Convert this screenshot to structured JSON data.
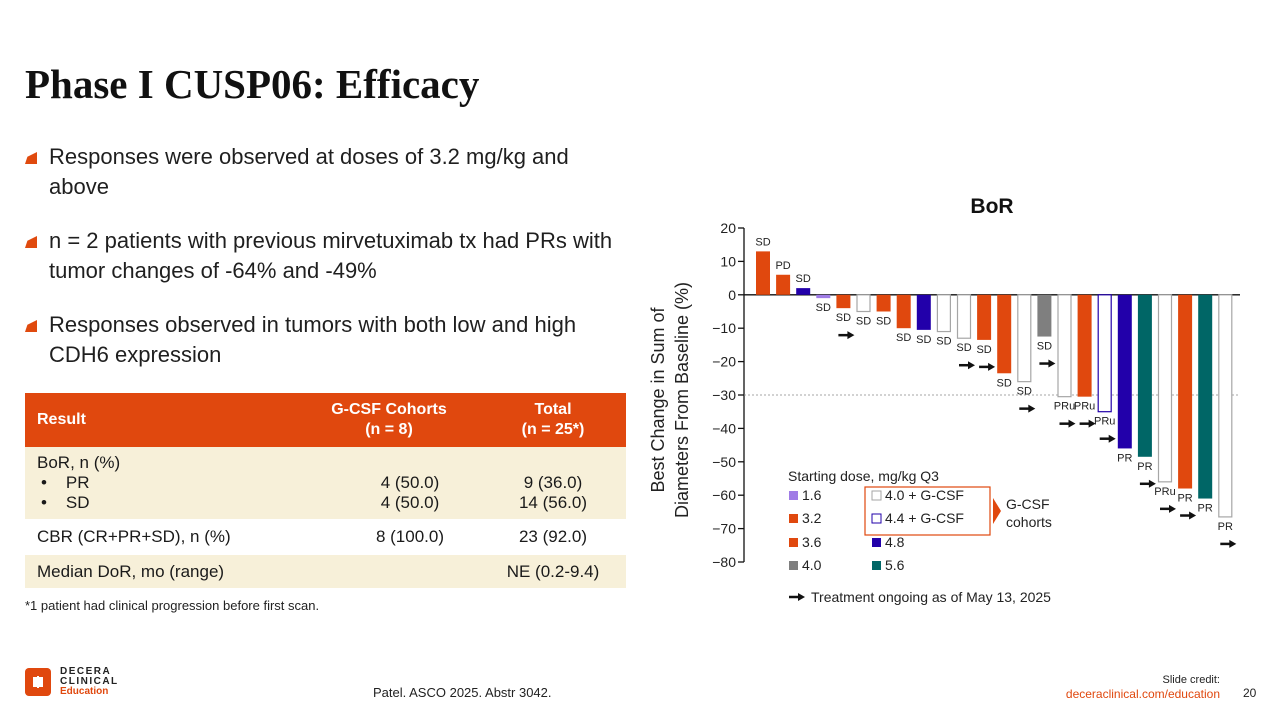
{
  "slide": {
    "title": "Phase I CUSP06: Efficacy",
    "bullets": [
      "Responses were observed at doses of 3.2 mg/kg and above",
      "n = 2 patients with previous mirvetuximab tx had PRs with tumor changes of -64% and -49%",
      "Responses observed in tumors with both low and high CDH6 expression"
    ],
    "table": {
      "headers": [
        "Result",
        "G-CSF Cohorts",
        "(n = 8)",
        "Total",
        "(n = 25*)"
      ],
      "rows": {
        "bor_label": "BoR, n (%)",
        "pr_label": "PR",
        "pr_gcsf": "4 (50.0)",
        "pr_total": "9 (36.0)",
        "sd_label": "SD",
        "sd_gcsf": "4 (50.0)",
        "sd_total": "14 (56.0)",
        "cbr_label": "CBR (CR+PR+SD), n (%)",
        "cbr_gcsf": "8 (100.0)",
        "cbr_total": "23 (92.0)",
        "dor_label": "Median DoR, mo (range)",
        "dor_gcsf": "",
        "dor_total": "NE (0.2-9.4)"
      }
    },
    "footnote": "*1 patient had clinical progression before first scan.",
    "logo": {
      "line1": "DECERA",
      "line2": "CLINICAL",
      "line3": "Education"
    },
    "citation": "Patel. ASCO 2025. Abstr 3042.",
    "credit_label": "Slide credit:",
    "credit_url": "deceraclinical.com/education",
    "page_number": "20",
    "colors": {
      "accent": "#e0480e",
      "table_row_tan": "#f7f0d9"
    }
  },
  "chart_data": {
    "type": "bar",
    "title": "BoR",
    "xlabel": "",
    "ylabel": "Best Change in Sum of Diameters From Baseline (%)",
    "ylabel_lines": [
      "Best Change in Sum of",
      "Diameters From Baseline (%)"
    ],
    "ylim": [
      -80,
      20
    ],
    "yticks": [
      20,
      10,
      0,
      -10,
      -20,
      -30,
      -40,
      -50,
      -60,
      -70,
      -80
    ],
    "reference_line": -30,
    "bars": [
      {
        "value": 13,
        "dose": "3.2",
        "response": "SD",
        "ongoing": false
      },
      {
        "value": 6,
        "dose": "3.2",
        "response": "PD",
        "ongoing": false
      },
      {
        "value": 2,
        "dose": "4.8",
        "response": "SD",
        "ongoing": false
      },
      {
        "value": -1,
        "dose": "1.6",
        "response": "SD",
        "ongoing": false
      },
      {
        "value": -4,
        "dose": "3.2",
        "response": "SD",
        "ongoing": true
      },
      {
        "value": -5,
        "dose": "4.0 + G-CSF",
        "response": "SD",
        "ongoing": false
      },
      {
        "value": -5,
        "dose": "3.6",
        "response": "SD",
        "ongoing": false
      },
      {
        "value": -10,
        "dose": "3.6",
        "response": "SD",
        "ongoing": false
      },
      {
        "value": -10.5,
        "dose": "4.8",
        "response": "SD",
        "ongoing": false
      },
      {
        "value": -11,
        "dose": "4.0 + G-CSF",
        "response": "SD",
        "ongoing": false
      },
      {
        "value": -13,
        "dose": "4.0 + G-CSF",
        "response": "SD",
        "ongoing": true
      },
      {
        "value": -13.5,
        "dose": "3.6",
        "response": "SD",
        "ongoing": true
      },
      {
        "value": -23.5,
        "dose": "3.6",
        "response": "SD",
        "ongoing": false
      },
      {
        "value": -26,
        "dose": "4.0 + G-CSF",
        "response": "SD",
        "ongoing": true
      },
      {
        "value": -12.5,
        "dose": "4.0",
        "response": "SD",
        "ongoing": true
      },
      {
        "value": -30.5,
        "dose": "4.0 + G-CSF",
        "response": "PRu",
        "ongoing": true
      },
      {
        "value": -30.5,
        "dose": "3.6",
        "response": "PRu",
        "ongoing": true
      },
      {
        "value": -35,
        "dose": "4.4 + G-CSF",
        "response": "PRu",
        "ongoing": true
      },
      {
        "value": -46,
        "dose": "4.8",
        "response": "PR",
        "ongoing": false
      },
      {
        "value": -48.5,
        "dose": "5.6",
        "response": "PR",
        "ongoing": true
      },
      {
        "value": -56,
        "dose": "4.0 + G-CSF",
        "response": "PRu",
        "ongoing": true
      },
      {
        "value": -58,
        "dose": "3.6",
        "response": "PR",
        "ongoing": true
      },
      {
        "value": -61,
        "dose": "5.6",
        "response": "PR",
        "ongoing": false
      },
      {
        "value": -66.5,
        "dose": "4.0 + G-CSF",
        "response": "PR",
        "ongoing": true
      }
    ],
    "legend": {
      "title": "Starting dose, mg/kg Q3",
      "placement": "bottom-left inside",
      "entries": [
        {
          "label": "1.6",
          "fill": "#a07ce6",
          "stroke": "none"
        },
        {
          "label": "3.2",
          "fill": "#e0480e",
          "stroke": "none"
        },
        {
          "label": "3.6",
          "fill": "#e0480e",
          "stroke": "none"
        },
        {
          "label": "4.0",
          "fill": "#7f7f7f",
          "stroke": "none"
        },
        {
          "label": "4.0 + G-CSF",
          "fill": "#ffffff",
          "stroke": "#a6a6a6"
        },
        {
          "label": "4.4 + G-CSF",
          "fill": "#ffffff",
          "stroke": "#2200aa"
        },
        {
          "label": "4.8",
          "fill": "#2200aa",
          "stroke": "none"
        },
        {
          "label": "5.6",
          "fill": "#006666",
          "stroke": "none"
        }
      ],
      "gcsf_group_label": [
        "G-CSF",
        "cohorts"
      ],
      "ongoing_label": "Treatment ongoing as of May 13, 2025"
    }
  }
}
